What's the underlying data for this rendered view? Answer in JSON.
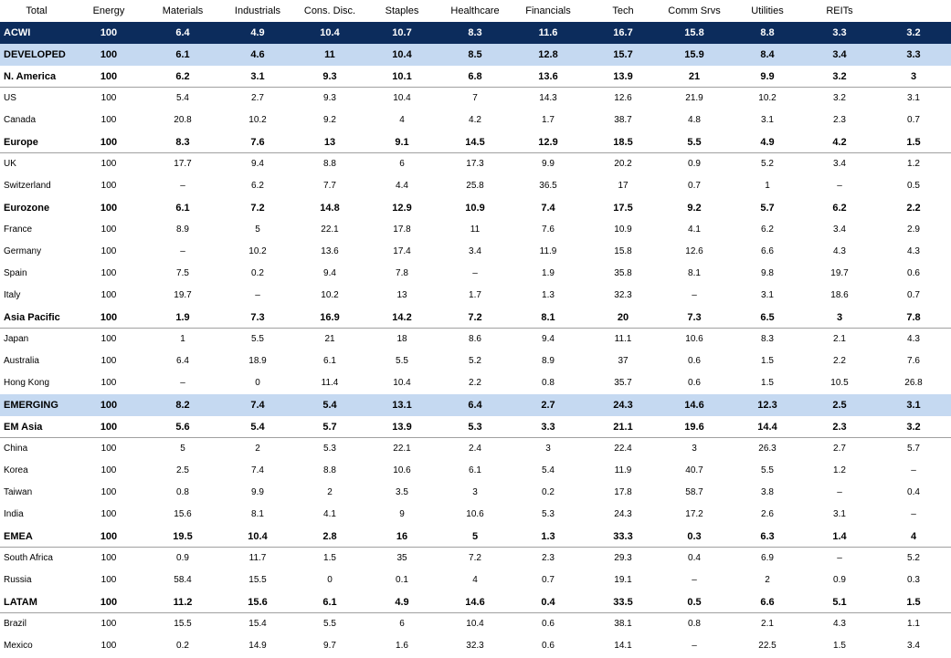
{
  "table": {
    "header": [
      "Total",
      "Energy",
      "Materials",
      "Industrials",
      "Cons. Disc.",
      "Staples",
      "Healthcare",
      "Financials",
      "Tech",
      "Comm Srvs",
      "Utilities",
      "REITs"
    ],
    "rows": [
      {
        "name": "ACWI",
        "style": "dark",
        "values": [
          100,
          6.4,
          4.9,
          10.4,
          10.7,
          8.3,
          11.6,
          16.7,
          15.8,
          8.8,
          3.3,
          3.2
        ]
      },
      {
        "name": "DEVELOPED",
        "style": "light",
        "values": [
          100,
          6.1,
          4.6,
          11,
          10.4,
          8.5,
          12.8,
          15.7,
          15.9,
          8.4,
          3.4,
          3.3
        ]
      },
      {
        "name": "N. America",
        "style": "bold-rule",
        "values": [
          100,
          6.2,
          3.1,
          9.3,
          10.1,
          6.8,
          13.6,
          13.9,
          21,
          9.9,
          3.2,
          3
        ]
      },
      {
        "name": "US",
        "style": "normal",
        "values": [
          100,
          5.4,
          2.7,
          9.3,
          10.4,
          7,
          14.3,
          12.6,
          21.9,
          10.2,
          3.2,
          3.1
        ]
      },
      {
        "name": "Canada",
        "style": "normal",
        "values": [
          100,
          20.8,
          10.2,
          9.2,
          4,
          4.2,
          1.7,
          38.7,
          4.8,
          3.1,
          2.3,
          0.7
        ]
      },
      {
        "name": "Europe",
        "style": "bold-rule",
        "values": [
          100,
          8.3,
          7.6,
          13,
          9.1,
          14.5,
          12.9,
          18.5,
          5.5,
          4.9,
          4.2,
          1.5
        ]
      },
      {
        "name": "UK",
        "style": "normal",
        "values": [
          100,
          17.7,
          9.4,
          8.8,
          6,
          17.3,
          9.9,
          20.2,
          0.9,
          5.2,
          3.4,
          1.2
        ]
      },
      {
        "name": "Switzerland",
        "style": "normal",
        "values": [
          100,
          "–",
          6.2,
          7.7,
          4.4,
          25.8,
          36.5,
          17,
          0.7,
          1,
          "–",
          0.5
        ]
      },
      {
        "name": "Eurozone",
        "style": "bold",
        "values": [
          100,
          6.1,
          7.2,
          14.8,
          12.9,
          10.9,
          7.4,
          17.5,
          9.2,
          5.7,
          6.2,
          2.2
        ]
      },
      {
        "name": "France",
        "style": "normal",
        "values": [
          100,
          8.9,
          5,
          22.1,
          17.8,
          11,
          7.6,
          10.9,
          4.1,
          6.2,
          3.4,
          2.9
        ]
      },
      {
        "name": "Germany",
        "style": "normal",
        "values": [
          100,
          "–",
          10.2,
          13.6,
          17.4,
          3.4,
          11.9,
          15.8,
          12.6,
          6.6,
          4.3,
          4.3
        ]
      },
      {
        "name": "Spain",
        "style": "normal",
        "values": [
          100,
          7.5,
          0.2,
          9.4,
          7.8,
          "–",
          1.9,
          35.8,
          8.1,
          9.8,
          19.7,
          0.6
        ]
      },
      {
        "name": "Italy",
        "style": "normal",
        "values": [
          100,
          19.7,
          "–",
          10.2,
          13,
          1.7,
          1.3,
          32.3,
          "–",
          3.1,
          18.6,
          0.7
        ]
      },
      {
        "name": "Asia Pacific",
        "style": "bold-rule",
        "values": [
          100,
          1.9,
          7.3,
          16.9,
          14.2,
          7.2,
          8.1,
          20,
          7.3,
          6.5,
          3,
          7.8
        ]
      },
      {
        "name": "Japan",
        "style": "normal",
        "values": [
          100,
          1,
          5.5,
          21,
          18,
          8.6,
          9.4,
          11.1,
          10.6,
          8.3,
          2.1,
          4.3
        ]
      },
      {
        "name": "Australia",
        "style": "normal",
        "values": [
          100,
          6.4,
          18.9,
          6.1,
          5.5,
          5.2,
          8.9,
          37,
          0.6,
          1.5,
          2.2,
          7.6
        ]
      },
      {
        "name": "Hong Kong",
        "style": "normal",
        "values": [
          100,
          "–",
          0,
          11.4,
          10.4,
          2.2,
          0.8,
          35.7,
          0.6,
          1.5,
          10.5,
          26.8
        ]
      },
      {
        "name": "EMERGING",
        "style": "light",
        "values": [
          100,
          8.2,
          7.4,
          5.4,
          13.1,
          6.4,
          2.7,
          24.3,
          14.6,
          12.3,
          2.5,
          3.1
        ]
      },
      {
        "name": "EM Asia",
        "style": "bold-rule",
        "values": [
          100,
          5.6,
          5.4,
          5.7,
          13.9,
          5.3,
          3.3,
          21.1,
          19.6,
          14.4,
          2.3,
          3.2
        ]
      },
      {
        "name": "China",
        "style": "normal",
        "values": [
          100,
          5,
          2,
          5.3,
          22.1,
          2.4,
          3,
          22.4,
          3,
          26.3,
          2.7,
          5.7
        ]
      },
      {
        "name": "Korea",
        "style": "normal",
        "values": [
          100,
          2.5,
          7.4,
          8.8,
          10.6,
          6.1,
          5.4,
          11.9,
          40.7,
          5.5,
          1.2,
          "–"
        ]
      },
      {
        "name": "Taiwan",
        "style": "normal",
        "values": [
          100,
          0.8,
          9.9,
          2,
          3.5,
          3,
          0.2,
          17.8,
          58.7,
          3.8,
          "–",
          0.4
        ]
      },
      {
        "name": "India",
        "style": "normal",
        "values": [
          100,
          15.6,
          8.1,
          4.1,
          9,
          10.6,
          5.3,
          24.3,
          17.2,
          2.6,
          3.1,
          "–"
        ]
      },
      {
        "name": "EMEA",
        "style": "bold-rule",
        "values": [
          100,
          19.5,
          10.4,
          2.8,
          16,
          5,
          1.3,
          33.3,
          0.3,
          6.3,
          1.4,
          4
        ]
      },
      {
        "name": "South Africa",
        "style": "normal",
        "values": [
          100,
          0.9,
          11.7,
          1.5,
          35,
          7.2,
          2.3,
          29.3,
          0.4,
          6.9,
          "–",
          5.2
        ]
      },
      {
        "name": "Russia",
        "style": "normal",
        "values": [
          100,
          58.4,
          15.5,
          0,
          0.1,
          4,
          0.7,
          19.1,
          "–",
          2,
          0.9,
          0.3
        ]
      },
      {
        "name": "LATAM",
        "style": "bold-rule",
        "values": [
          100,
          11.2,
          15.6,
          6.1,
          4.9,
          14.6,
          0.4,
          33.5,
          0.5,
          6.6,
          5.1,
          1.5
        ]
      },
      {
        "name": "Brazil",
        "style": "normal",
        "values": [
          100,
          15.5,
          15.4,
          5.5,
          6,
          10.4,
          0.6,
          38.1,
          0.8,
          2.1,
          4.3,
          1.1
        ]
      },
      {
        "name": "Mexico",
        "style": "normal",
        "values": [
          100,
          0.2,
          14.9,
          9.7,
          1.6,
          32.3,
          0.6,
          14.1,
          "–",
          22.5,
          1.5,
          3.4
        ]
      }
    ]
  }
}
